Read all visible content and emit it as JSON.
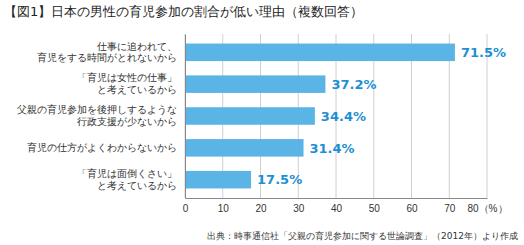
{
  "chart_data": {
    "type": "bar",
    "orientation": "horizontal",
    "title": "【図1】日本の男性の育児参加の割合が低い理由（複数回答）",
    "source": "出典：時事通信社「父親の育児参加に関する世論調査」（2012年）より作成",
    "categories": [
      "仕事に追われて、\n育児をする時間がとれないから",
      "「育児は女性の仕事」\nと考えているから",
      "父親の育児参加を後押しするような\n行政支援が少ないから",
      "育児の仕方がよくわからないから",
      "「育児は面倒くさい」\nと考えているから"
    ],
    "values": [
      71.5,
      37.2,
      34.4,
      31.4,
      17.5
    ],
    "value_labels": [
      "71.5%",
      "37.2%",
      "34.4%",
      "31.4%",
      "17.5%"
    ],
    "data_labels": true,
    "color": "#5ab4e5",
    "xlim": [
      0,
      80
    ],
    "xticks": [
      0,
      10,
      20,
      30,
      40,
      50,
      60,
      70,
      {
        "value": 80,
        "label": "80（%）"
      }
    ],
    "grid": true
  }
}
